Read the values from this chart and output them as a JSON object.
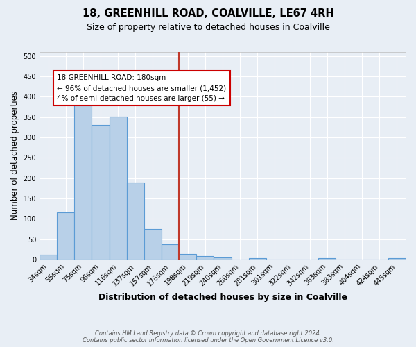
{
  "title": "18, GREENHILL ROAD, COALVILLE, LE67 4RH",
  "subtitle": "Size of property relative to detached houses in Coalville",
  "xlabel": "Distribution of detached houses by size in Coalville",
  "ylabel": "Number of detached properties",
  "bar_labels": [
    "34sqm",
    "55sqm",
    "75sqm",
    "96sqm",
    "116sqm",
    "137sqm",
    "157sqm",
    "178sqm",
    "198sqm",
    "219sqm",
    "240sqm",
    "260sqm",
    "281sqm",
    "301sqm",
    "322sqm",
    "342sqm",
    "363sqm",
    "383sqm",
    "404sqm",
    "424sqm",
    "445sqm"
  ],
  "bar_values": [
    12,
    115,
    383,
    331,
    352,
    190,
    75,
    38,
    13,
    8,
    5,
    0,
    3,
    0,
    0,
    0,
    4,
    0,
    0,
    0,
    4
  ],
  "bar_color": "#b8d0e8",
  "bar_edge_color": "#5b9bd5",
  "vline_x_index": 7,
  "vline_color": "#c0392b",
  "annotation_line1": "18 GREENHILL ROAD: 180sqm",
  "annotation_line2": "← 96% of detached houses are smaller (1,452)",
  "annotation_line3": "4% of semi-detached houses are larger (55) →",
  "annotation_box_color": "#ffffff",
  "annotation_box_edge": "#cc0000",
  "bg_color": "#e8eef5",
  "grid_color": "#ffffff",
  "footer_line1": "Contains HM Land Registry data © Crown copyright and database right 2024.",
  "footer_line2": "Contains public sector information licensed under the Open Government Licence v3.0.",
  "ylim": [
    0,
    510
  ],
  "yticks": [
    0,
    50,
    100,
    150,
    200,
    250,
    300,
    350,
    400,
    450,
    500
  ]
}
